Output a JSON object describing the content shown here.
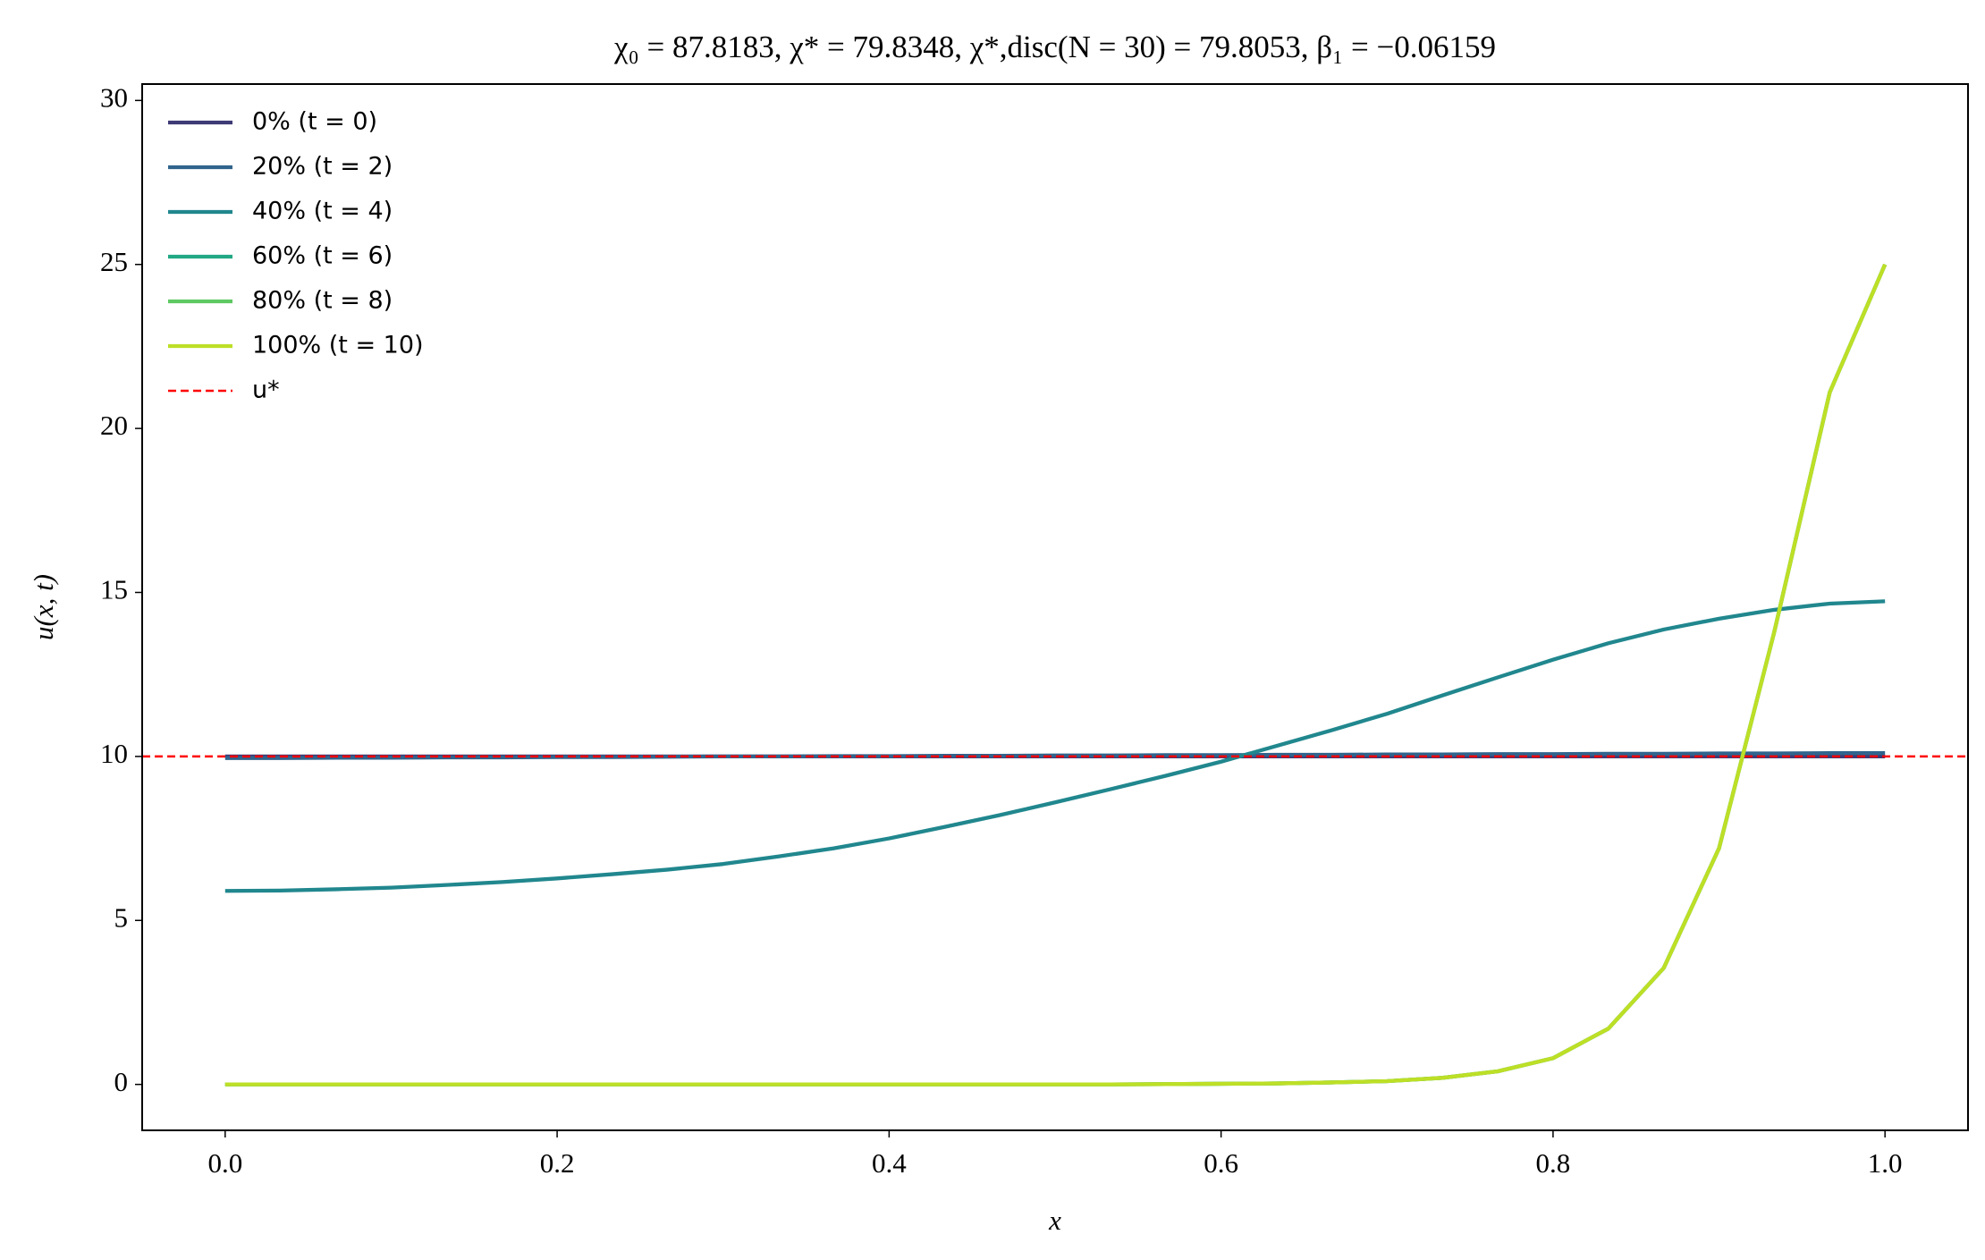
{
  "chart_data": {
    "type": "line",
    "title": "χ₀ = 87.8183,  χ* = 79.8348,  χ*,disc(N = 30) = 79.8053,  β₁ = −0.06159",
    "x_label": "x",
    "y_label": "u(x, t)",
    "x": [
      0,
      0.0333,
      0.0667,
      0.1,
      0.1333,
      0.1667,
      0.2,
      0.2333,
      0.2667,
      0.3,
      0.3333,
      0.3667,
      0.4,
      0.4333,
      0.4667,
      0.5,
      0.5333,
      0.5667,
      0.6,
      0.6333,
      0.6667,
      0.7,
      0.7333,
      0.7667,
      0.8,
      0.8333,
      0.8667,
      0.9,
      0.9333,
      0.9667,
      1
    ],
    "series": [
      {
        "name": "0% (t = 0)",
        "color": "#3e3a75",
        "values": [
          10,
          10,
          10,
          10,
          10,
          10,
          10,
          10,
          10,
          10,
          10,
          10,
          10,
          10,
          10,
          10,
          10,
          10,
          10,
          10,
          10,
          10,
          10,
          10,
          10,
          10,
          10,
          10,
          10,
          10,
          10
        ]
      },
      {
        "name": "20% (t = 2)",
        "color": "#31648d",
        "values": [
          9.95,
          9.95,
          9.96,
          9.96,
          9.97,
          9.97,
          9.98,
          9.98,
          9.99,
          10,
          10,
          10.01,
          10.01,
          10.02,
          10.02,
          10.03,
          10.03,
          10.04,
          10.04,
          10.05,
          10.05,
          10.06,
          10.06,
          10.07,
          10.07,
          10.08,
          10.08,
          10.09,
          10.09,
          10.1,
          10.1
        ]
      },
      {
        "name": "40% (t = 4)",
        "color": "#21878e",
        "values": [
          5.9,
          5.91,
          5.95,
          6.0,
          6.08,
          6.17,
          6.28,
          6.41,
          6.55,
          6.72,
          6.95,
          7.2,
          7.5,
          7.85,
          8.21,
          8.6,
          9.0,
          9.41,
          9.84,
          10.32,
          10.8,
          11.3,
          11.86,
          12.41,
          12.95,
          13.45,
          13.87,
          14.2,
          14.47,
          14.66,
          14.73
        ]
      },
      {
        "name": "60% (t = 6)",
        "color": "#22a884",
        "values": [
          0,
          0,
          0,
          0,
          0,
          0,
          0,
          0,
          0,
          0,
          0,
          0,
          0,
          0,
          0,
          0,
          0,
          0.01,
          0.02,
          0.03,
          0.06,
          0.1,
          0.2,
          0.4,
          0.8,
          1.7,
          3.55,
          7.2,
          13.8,
          21.1,
          25.0
        ]
      },
      {
        "name": "80% (t = 8)",
        "color": "#5ec962",
        "values": [
          0,
          0,
          0,
          0,
          0,
          0,
          0,
          0,
          0,
          0,
          0,
          0,
          0,
          0,
          0,
          0,
          0,
          0.01,
          0.02,
          0.03,
          0.06,
          0.1,
          0.2,
          0.4,
          0.8,
          1.7,
          3.55,
          7.2,
          13.8,
          21.1,
          25.0
        ]
      },
      {
        "name": "100% (t = 10)",
        "color": "#bddf26",
        "values": [
          0,
          0,
          0,
          0,
          0,
          0,
          0,
          0,
          0,
          0,
          0,
          0,
          0,
          0,
          0,
          0,
          0,
          0.01,
          0.02,
          0.03,
          0.06,
          0.1,
          0.2,
          0.4,
          0.8,
          1.7,
          3.55,
          7.2,
          13.8,
          21.1,
          25.0
        ]
      }
    ],
    "reference_line": {
      "name": "u*",
      "value": 10,
      "color": "#ff0000"
    },
    "xlim": [
      -0.05,
      1.05
    ],
    "xticks": [
      {
        "value": 0,
        "label": "0.0"
      },
      0.2,
      0.4,
      0.6,
      0.8,
      {
        "value": 1,
        "label": "1.0"
      }
    ],
    "ylim": [
      -1.4,
      30.5
    ],
    "yticks": [
      0,
      5,
      10,
      15,
      20,
      25,
      30
    ],
    "legend": "upper left"
  }
}
